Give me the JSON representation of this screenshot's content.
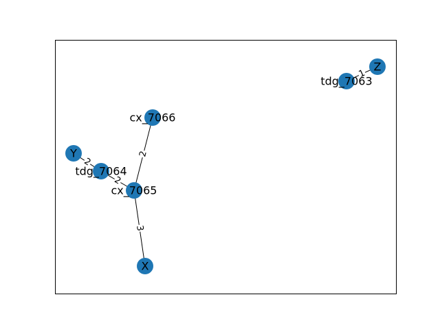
{
  "graph": {
    "colors": {
      "node_fill": "#1f77b4",
      "edge_stroke": "#000000",
      "frame_stroke": "#000000",
      "label_text": "#000000",
      "label_background": "#ffffff"
    },
    "nodes": [
      {
        "id": "Z",
        "label": "Z"
      },
      {
        "id": "tdg_7063",
        "label": "tdg_7063"
      },
      {
        "id": "cx_7066",
        "label": "cx_7066"
      },
      {
        "id": "Y",
        "label": "Y"
      },
      {
        "id": "tdg_7064",
        "label": "tdg_7064"
      },
      {
        "id": "cx_7065",
        "label": "cx_7065"
      },
      {
        "id": "X",
        "label": "X"
      }
    ],
    "edges": [
      {
        "source": "tdg_7063",
        "target": "Z",
        "label": "1"
      },
      {
        "source": "cx_7066",
        "target": "cx_7065",
        "label": "2"
      },
      {
        "source": "Y",
        "target": "tdg_7064",
        "label": "2"
      },
      {
        "source": "tdg_7064",
        "target": "cx_7065",
        "label": "2"
      },
      {
        "source": "cx_7065",
        "target": "X",
        "label": "3"
      }
    ]
  }
}
